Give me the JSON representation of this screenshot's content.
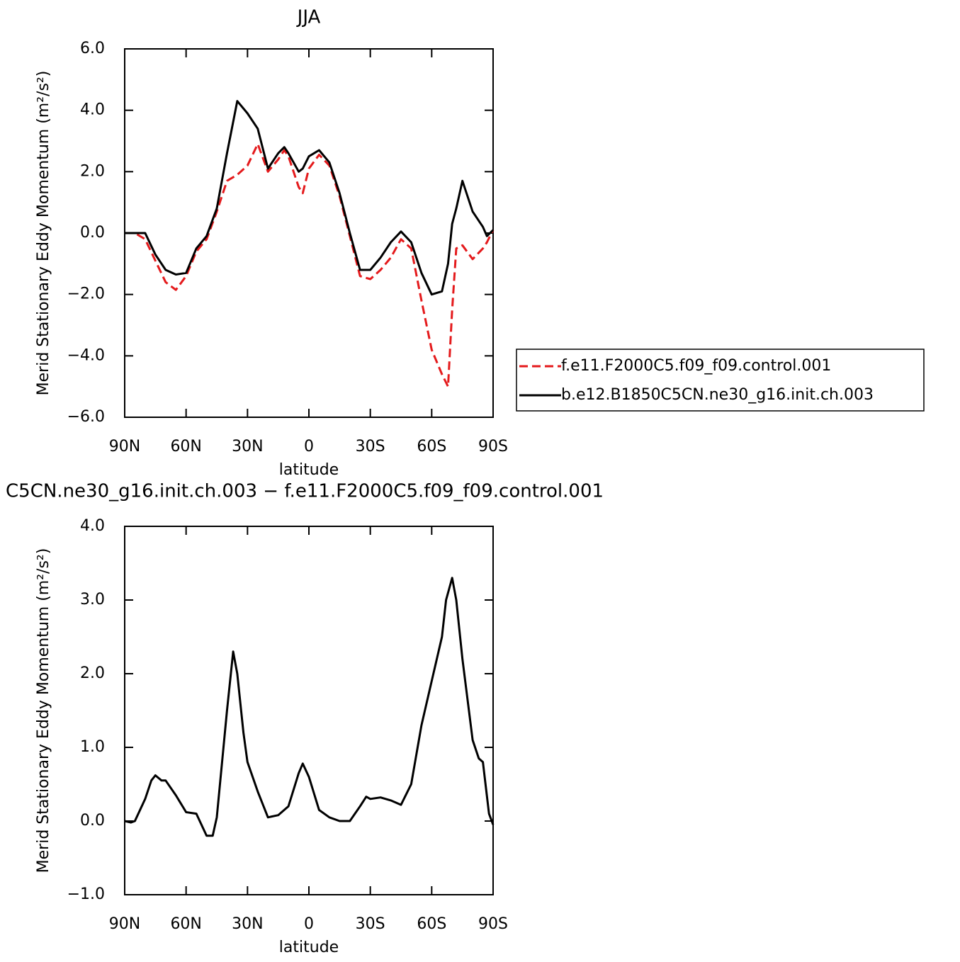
{
  "chart_data": [
    {
      "type": "line",
      "title": "JJA",
      "xlabel": "latitude",
      "ylabel": "Merid Stationary Eddy Momentum (m²/s²)",
      "x": [
        90,
        85,
        80,
        75,
        70,
        65,
        60,
        55,
        50,
        45,
        40,
        35,
        30,
        25,
        20,
        15,
        12,
        10,
        5,
        3,
        0,
        -5,
        -10,
        -15,
        -20,
        -25,
        -30,
        -35,
        -40,
        -45,
        -50,
        -55,
        -60,
        -65,
        -68,
        -70,
        -72,
        -75,
        -80,
        -85,
        -87,
        -90
      ],
      "series": [
        {
          "name": "f.e11.F2000C5.f09_f09.control.001",
          "color": "#e41a1c",
          "style": "dashed",
          "values": [
            0,
            0,
            -0.2,
            -0.9,
            -1.6,
            -1.85,
            -1.4,
            -0.6,
            -0.2,
            0.7,
            1.7,
            1.9,
            2.2,
            2.9,
            2.0,
            2.4,
            2.7,
            2.5,
            1.5,
            1.3,
            2.1,
            2.55,
            2.2,
            1.2,
            -0.1,
            -1.4,
            -1.5,
            -1.2,
            -0.8,
            -0.2,
            -0.5,
            -2.2,
            -3.8,
            -4.6,
            -5.0,
            -2.5,
            -0.5,
            -0.4,
            -0.85,
            -0.5,
            -0.3,
            0.1
          ]
        },
        {
          "name": "b.e12.B1850C5CN.ne30_g16.init.ch.003",
          "color": "#000000",
          "style": "solid",
          "values": [
            0,
            0,
            0,
            -0.7,
            -1.2,
            -1.35,
            -1.3,
            -0.5,
            -0.1,
            0.8,
            2.6,
            4.3,
            3.9,
            3.4,
            2.1,
            2.6,
            2.8,
            2.6,
            2.0,
            2.1,
            2.5,
            2.7,
            2.3,
            1.3,
            0.0,
            -1.2,
            -1.2,
            -0.8,
            -0.3,
            0.05,
            -0.3,
            -1.3,
            -2.0,
            -1.9,
            -1.0,
            0.3,
            0.8,
            1.7,
            0.7,
            0.2,
            -0.1,
            0.1
          ]
        }
      ],
      "xlim": [
        90,
        -90
      ],
      "xticks": [
        {
          "value": 90,
          "label": "90N"
        },
        {
          "value": 60,
          "label": "60N"
        },
        {
          "value": 30,
          "label": "30N"
        },
        0,
        {
          "value": -30,
          "label": "30S"
        },
        {
          "value": -60,
          "label": "60S"
        },
        {
          "value": -90,
          "label": "90S"
        }
      ],
      "ylim": [
        -6,
        6
      ],
      "yticks": [
        {
          "value": -6,
          "label": "−6.0"
        },
        {
          "value": -4,
          "label": "−4.0"
        },
        {
          "value": -2,
          "label": "−2.0"
        },
        {
          "value": 0,
          "label": "0.0"
        },
        {
          "value": 2,
          "label": "2.0"
        },
        {
          "value": 4,
          "label": "4.0"
        },
        {
          "value": 6,
          "label": "6.0"
        }
      ],
      "legend": "right"
    },
    {
      "type": "line",
      "title": "C5CN.ne30_g16.init.ch.003 − f.e11.F2000C5.f09_f09.control.001",
      "xlabel": "latitude",
      "ylabel": "Merid Stationary Eddy Momentum (m²/s²)",
      "x": [
        90,
        87,
        85,
        80,
        77,
        75,
        72,
        70,
        65,
        60,
        55,
        50,
        47,
        45,
        40,
        37,
        35,
        32,
        30,
        25,
        20,
        15,
        10,
        5,
        3,
        0,
        -5,
        -10,
        -15,
        -20,
        -25,
        -28,
        -30,
        -35,
        -40,
        -45,
        -50,
        -55,
        -60,
        -65,
        -67,
        -70,
        -72,
        -75,
        -80,
        -83,
        -85,
        -88,
        -90
      ],
      "series": [
        {
          "color": "#000000",
          "style": "solid",
          "values": [
            0,
            -0.02,
            0,
            0.3,
            0.55,
            0.62,
            0.55,
            0.55,
            0.35,
            0.12,
            0.1,
            -0.2,
            -0.2,
            0.05,
            1.5,
            2.3,
            2.0,
            1.2,
            0.8,
            0.4,
            0.05,
            0.08,
            0.2,
            0.65,
            0.78,
            0.6,
            0.15,
            0.05,
            0,
            0,
            0.2,
            0.33,
            0.3,
            0.32,
            0.28,
            0.22,
            0.5,
            1.3,
            1.9,
            2.5,
            3.0,
            3.3,
            3.0,
            2.2,
            1.1,
            0.85,
            0.8,
            0.1,
            -0.05
          ]
        }
      ],
      "xlim": [
        90,
        -90
      ],
      "xticks": [
        {
          "value": 90,
          "label": "90N"
        },
        {
          "value": 60,
          "label": "60N"
        },
        {
          "value": 30,
          "label": "30N"
        },
        0,
        {
          "value": -30,
          "label": "30S"
        },
        {
          "value": -60,
          "label": "60S"
        },
        {
          "value": -90,
          "label": "90S"
        }
      ],
      "ylim": [
        -1,
        4
      ],
      "yticks": [
        {
          "value": -1,
          "label": "−1.0"
        },
        {
          "value": 0,
          "label": "0.0"
        },
        {
          "value": 1,
          "label": "1.0"
        },
        {
          "value": 2,
          "label": "2.0"
        },
        {
          "value": 3,
          "label": "3.0"
        },
        {
          "value": 4,
          "label": "4.0"
        }
      ]
    }
  ]
}
